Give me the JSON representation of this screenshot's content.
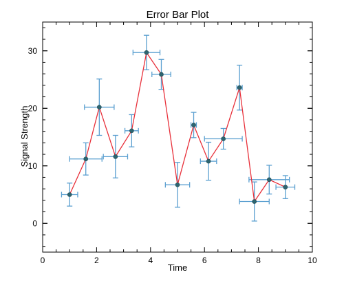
{
  "chart_data": {
    "type": "scatter",
    "title": "Error Bar Plot",
    "xlabel": "Time",
    "ylabel": "Signal Strength",
    "xlim": [
      0,
      10
    ],
    "ylim": [
      -5,
      35
    ],
    "xticks": [
      0,
      2,
      4,
      6,
      8,
      10
    ],
    "yticks": [
      0,
      10,
      20,
      30
    ],
    "x_minor_step": 0.5,
    "y_minor_step": 2,
    "grid": false,
    "connect_points": true,
    "series": [
      {
        "x": [
          1.0,
          1.6,
          2.1,
          2.7,
          3.3,
          3.85,
          4.4,
          5.0,
          5.6,
          6.15,
          6.7,
          7.3,
          7.85,
          8.4,
          9.0
        ],
        "y": [
          5.0,
          11.2,
          20.2,
          11.6,
          16.1,
          29.7,
          25.9,
          6.7,
          17.1,
          10.8,
          14.7,
          23.6,
          3.8,
          7.6,
          6.3
        ],
        "x_err": [
          0.3,
          0.6,
          0.55,
          0.45,
          0.25,
          0.5,
          0.35,
          0.45,
          0.1,
          0.3,
          0.7,
          0.1,
          0.55,
          0.75,
          0.35
        ],
        "y_err": [
          2.0,
          2.8,
          4.9,
          3.7,
          2.8,
          3.0,
          2.6,
          3.9,
          2.2,
          3.3,
          1.8,
          3.9,
          3.4,
          2.5,
          2.0
        ]
      }
    ],
    "colors": {
      "line": "#e8303a",
      "errorbar": "#5a9fd0",
      "marker": "#2e6570",
      "axes": "#000000"
    }
  }
}
